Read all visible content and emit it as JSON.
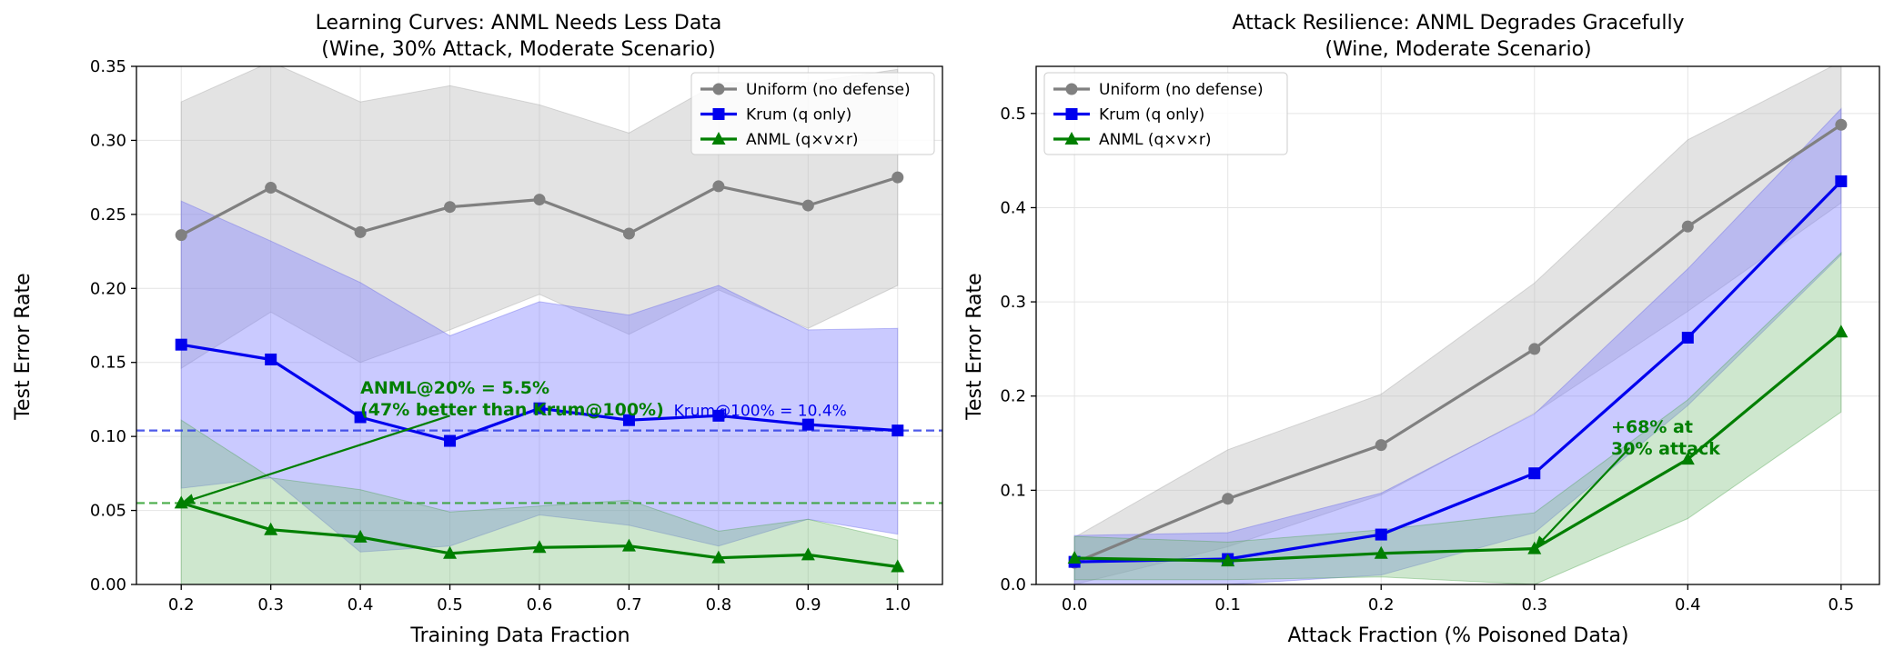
{
  "colors": {
    "uniform": "#808080",
    "krum": "#0000ee",
    "anml": "#007f00",
    "uniform_band": "#bdbdbd",
    "krum_band": "#8080ff",
    "anml_band": "#7fc07f",
    "krum_ref": "#2e3ee6",
    "anml_ref": "#2ca02c",
    "grid": "#e4e4e4"
  },
  "chart_data": [
    {
      "type": "line",
      "title_line1": "Learning Curves: ANML Needs Less Data",
      "title_line2": "(Wine, 30% Attack, Moderate Scenario)",
      "xlabel": "Training Data Fraction",
      "ylabel": "Test Error Rate",
      "xlim": [
        0.15,
        1.05
      ],
      "ylim": [
        0,
        0.35
      ],
      "xticks": [
        0.2,
        0.3,
        0.4,
        0.5,
        0.6,
        0.7,
        0.8,
        0.9,
        1.0
      ],
      "xtick_labels": [
        "0.2",
        "0.3",
        "0.4",
        "0.5",
        "0.6",
        "0.7",
        "0.8",
        "0.9",
        "1.0"
      ],
      "yticks": [
        0,
        0.05,
        0.1,
        0.15,
        0.2,
        0.25,
        0.3,
        0.35
      ],
      "ytick_labels": [
        "0.00",
        "0.05",
        "0.10",
        "0.15",
        "0.20",
        "0.25",
        "0.30",
        "0.35"
      ],
      "grid": true,
      "legend_position": "upper-right",
      "x": [
        0.2,
        0.3,
        0.4,
        0.5,
        0.6,
        0.7,
        0.8,
        0.9,
        1.0
      ],
      "series": [
        {
          "key": "uniform",
          "name": "Uniform (no defense)",
          "marker": "circle",
          "values": [
            0.236,
            0.268,
            0.238,
            0.255,
            0.26,
            0.237,
            0.269,
            0.256,
            0.275
          ],
          "lower": [
            0.146,
            0.184,
            0.15,
            0.172,
            0.196,
            0.169,
            0.199,
            0.173,
            0.202
          ],
          "upper": [
            0.326,
            0.353,
            0.326,
            0.337,
            0.324,
            0.305,
            0.339,
            0.339,
            0.348
          ]
        },
        {
          "key": "krum",
          "name": "Krum (q only)",
          "marker": "square",
          "values": [
            0.162,
            0.152,
            0.113,
            0.097,
            0.119,
            0.111,
            0.114,
            0.108,
            0.104
          ],
          "lower": [
            0.065,
            0.072,
            0.022,
            0.026,
            0.047,
            0.04,
            0.026,
            0.044,
            0.034
          ],
          "upper": [
            0.259,
            0.232,
            0.204,
            0.168,
            0.191,
            0.182,
            0.202,
            0.172,
            0.173
          ]
        },
        {
          "key": "anml",
          "name": "ANML (q×v×r)",
          "marker": "triangle",
          "values": [
            0.055,
            0.037,
            0.032,
            0.021,
            0.025,
            0.026,
            0.018,
            0.02,
            0.012
          ],
          "lower": [
            0.0,
            0.0,
            0.0,
            0.0,
            0.0,
            0.0,
            0.0,
            0.0,
            0.0
          ],
          "upper": [
            0.111,
            0.072,
            0.064,
            0.049,
            0.053,
            0.057,
            0.036,
            0.044,
            0.03
          ]
        }
      ],
      "ref_lines": [
        {
          "key": "krum",
          "y": 0.104,
          "label": "Krum@100% = 10.4%",
          "label_x": 0.75
        },
        {
          "key": "anml",
          "y": 0.055
        }
      ],
      "annotation": {
        "line1": "ANML@20% = 5.5%",
        "line2": "(47% better than Krum@100%)",
        "text_x": 0.4,
        "text_y": 0.129,
        "tail_x": 0.5,
        "tail_y": 0.114,
        "head_x": 0.2,
        "head_y": 0.055
      }
    },
    {
      "type": "line",
      "title_line1": "Attack Resilience: ANML Degrades Gracefully",
      "title_line2": "(Wine, Moderate Scenario)",
      "xlabel": "Attack Fraction (% Poisoned Data)",
      "ylabel": "Test Error Rate",
      "xlim": [
        -0.025,
        0.525
      ],
      "ylim": [
        0,
        0.55
      ],
      "xticks": [
        0,
        0.1,
        0.2,
        0.3,
        0.4,
        0.5
      ],
      "xtick_labels": [
        "0.0",
        "0.1",
        "0.2",
        "0.3",
        "0.4",
        "0.5"
      ],
      "yticks": [
        0,
        0.1,
        0.2,
        0.3,
        0.4,
        0.5
      ],
      "ytick_labels": [
        "0.0",
        "0.1",
        "0.2",
        "0.3",
        "0.4",
        "0.5"
      ],
      "grid": true,
      "legend_position": "upper-left",
      "x": [
        0,
        0.1,
        0.2,
        0.3,
        0.4,
        0.5
      ],
      "series": [
        {
          "key": "uniform",
          "name": "Uniform (no defense)",
          "marker": "circle",
          "values": [
            0.023,
            0.091,
            0.148,
            0.25,
            0.38,
            0.488
          ],
          "lower": [
            0.0,
            0.04,
            0.095,
            0.182,
            0.29,
            0.405
          ],
          "upper": [
            0.05,
            0.143,
            0.202,
            0.32,
            0.472,
            0.555
          ]
        },
        {
          "key": "krum",
          "name": "Krum (q only)",
          "marker": "square",
          "values": [
            0.024,
            0.027,
            0.053,
            0.118,
            0.262,
            0.428
          ],
          "lower": [
            0.0,
            0.0,
            0.01,
            0.055,
            0.19,
            0.35
          ],
          "upper": [
            0.052,
            0.055,
            0.097,
            0.181,
            0.335,
            0.505
          ]
        },
        {
          "key": "anml",
          "name": "ANML (q×v×r)",
          "marker": "triangle",
          "values": [
            0.028,
            0.025,
            0.033,
            0.038,
            0.133,
            0.268
          ],
          "lower": [
            0.005,
            0.005,
            0.008,
            0.0,
            0.07,
            0.183
          ],
          "upper": [
            0.051,
            0.045,
            0.058,
            0.076,
            0.196,
            0.352
          ]
        }
      ],
      "annotation": {
        "line1": "+68% at",
        "line2": "30% attack",
        "text_x": 0.35,
        "text_y": 0.161,
        "tail_x": 0.362,
        "tail_y": 0.145,
        "head_x": 0.3,
        "head_y": 0.038
      }
    }
  ]
}
